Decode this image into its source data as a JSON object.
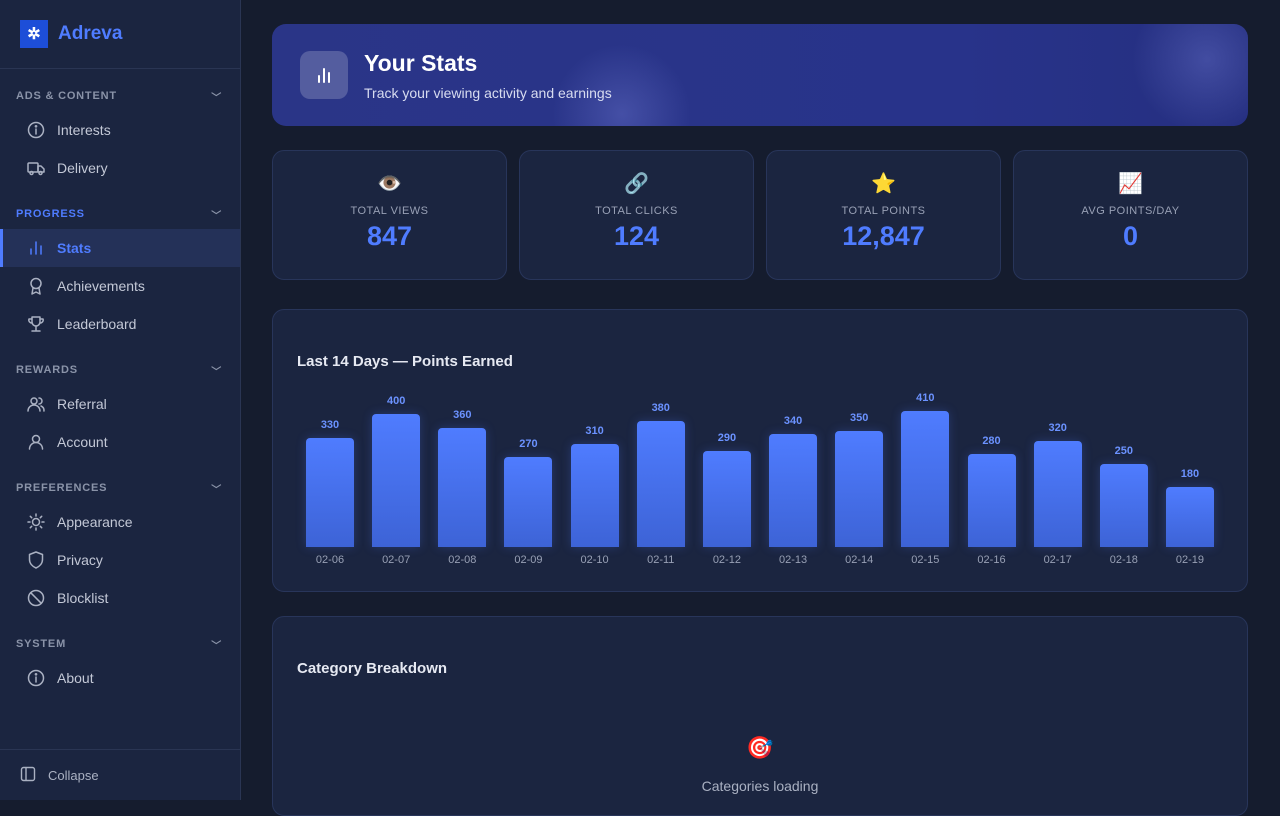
{
  "brand": {
    "name": "Adreva"
  },
  "sidebar": {
    "sections": [
      {
        "label": "ADS & CONTENT",
        "items": [
          {
            "label": "Interests",
            "icon": "info-icon"
          },
          {
            "label": "Delivery",
            "icon": "truck-icon"
          }
        ]
      },
      {
        "label": "PROGRESS",
        "items": [
          {
            "label": "Stats",
            "icon": "bar-chart-icon"
          },
          {
            "label": "Achievements",
            "icon": "award-icon"
          },
          {
            "label": "Leaderboard",
            "icon": "trophy-icon"
          }
        ]
      },
      {
        "label": "REWARDS",
        "items": [
          {
            "label": "Referral",
            "icon": "users-icon"
          },
          {
            "label": "Account",
            "icon": "user-icon"
          }
        ]
      },
      {
        "label": "PREFERENCES",
        "items": [
          {
            "label": "Appearance",
            "icon": "sun-icon"
          },
          {
            "label": "Privacy",
            "icon": "shield-icon"
          },
          {
            "label": "Blocklist",
            "icon": "ban-icon"
          }
        ]
      },
      {
        "label": "SYSTEM",
        "items": [
          {
            "label": "About",
            "icon": "info-icon"
          }
        ]
      }
    ],
    "active": "Stats",
    "collapse_label": "Collapse"
  },
  "header": {
    "title": "Your Stats",
    "subtitle": "Track your viewing activity and earnings"
  },
  "stats": [
    {
      "emoji": "👁️",
      "label": "TOTAL VIEWS",
      "value": "847"
    },
    {
      "emoji": "🔗",
      "label": "TOTAL CLICKS",
      "value": "124"
    },
    {
      "emoji": "⭐",
      "label": "TOTAL POINTS",
      "value": "12,847"
    },
    {
      "emoji": "📈",
      "label": "AVG POINTS/DAY",
      "value": "0"
    }
  ],
  "colors": {
    "accent": "#4f7cff",
    "bg": "#151c2e",
    "panel": "#1b2540"
  },
  "chart_data": {
    "type": "bar",
    "title": "Last 14 Days — Points Earned",
    "categories": [
      "02-06",
      "02-07",
      "02-08",
      "02-09",
      "02-10",
      "02-11",
      "02-12",
      "02-13",
      "02-14",
      "02-15",
      "02-16",
      "02-17",
      "02-18",
      "02-19"
    ],
    "values": [
      330,
      400,
      360,
      270,
      310,
      380,
      290,
      340,
      350,
      410,
      280,
      320,
      250,
      180
    ]
  },
  "category": {
    "title": "Category Breakdown",
    "emoji": "🎯",
    "status": "Categories loading"
  }
}
